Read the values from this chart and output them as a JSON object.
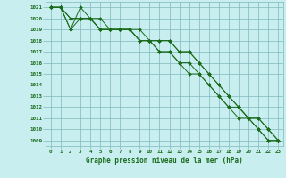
{
  "xlabel": "Graphe pression niveau de la mer (hPa)",
  "x": [
    0,
    1,
    2,
    3,
    4,
    5,
    6,
    7,
    8,
    9,
    10,
    11,
    12,
    13,
    14,
    15,
    16,
    17,
    18,
    19,
    20,
    21,
    22,
    23
  ],
  "series": [
    [
      1021,
      1021,
      1019,
      1021,
      1020,
      1019,
      1019,
      1019,
      1019,
      1018,
      1018,
      1017,
      1017,
      1016,
      1015,
      1015,
      1014,
      1013,
      1012,
      1011,
      1011,
      1010,
      1009,
      1009
    ],
    [
      1021,
      1021,
      1019,
      1020,
      1020,
      1019,
      1019,
      1019,
      1019,
      1018,
      1018,
      1017,
      1017,
      1016,
      1016,
      1015,
      1014,
      1013,
      1012,
      1012,
      1011,
      1010,
      1009,
      1009
    ],
    [
      1021,
      1021,
      1020,
      1020,
      1020,
      1019,
      1019,
      1019,
      1019,
      1018,
      1018,
      1018,
      1018,
      1017,
      1017,
      1016,
      1015,
      1014,
      1013,
      1012,
      1011,
      1011,
      1010,
      1009
    ],
    [
      1021,
      1021,
      1020,
      1020,
      1020,
      1020,
      1019,
      1019,
      1019,
      1019,
      1018,
      1018,
      1018,
      1017,
      1017,
      1016,
      1015,
      1014,
      1013,
      1012,
      1011,
      1011,
      1010,
      1009
    ]
  ],
  "line_color": "#1a6b1a",
  "bg_color": "#c8eef0",
  "grid_color": "#7fb8bb",
  "text_color": "#1a6b1a",
  "ylim": [
    1008.5,
    1021.5
  ],
  "yticks": [
    1009,
    1010,
    1011,
    1012,
    1013,
    1014,
    1015,
    1016,
    1017,
    1018,
    1019,
    1020,
    1021
  ],
  "xlim": [
    -0.5,
    23.5
  ],
  "xticks": [
    0,
    1,
    2,
    3,
    4,
    5,
    6,
    7,
    8,
    9,
    10,
    11,
    12,
    13,
    14,
    15,
    16,
    17,
    18,
    19,
    20,
    21,
    22,
    23
  ],
  "xlabel_fontsize": 5.5,
  "tick_fontsize": 4.2,
  "linewidth": 0.7,
  "markersize": 2.0
}
